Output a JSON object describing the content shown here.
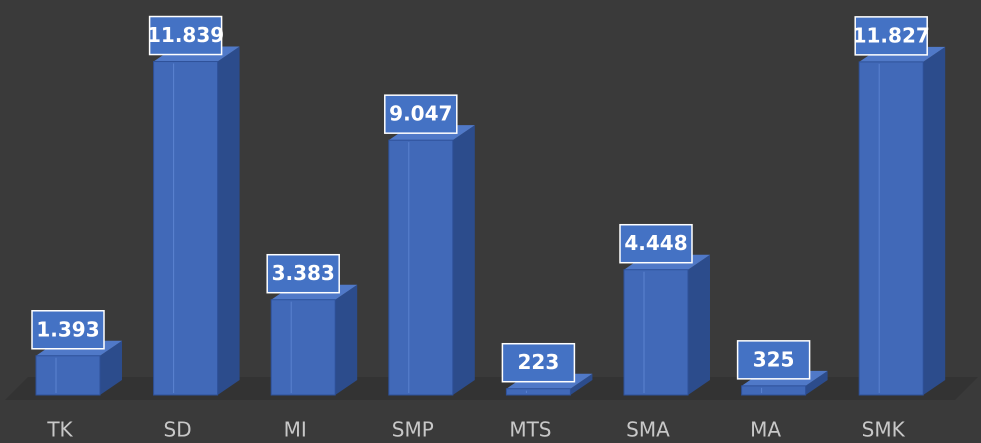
{
  "chart_data": {
    "type": "bar3d",
    "categories": [
      "TK",
      "SD",
      "MI",
      "SMP",
      "MTS",
      "SMA",
      "MA",
      "SMK"
    ],
    "values": [
      1393,
      11839,
      3383,
      9047,
      223,
      4448,
      325,
      11827
    ],
    "value_labels": [
      "1.393",
      "11.839",
      "3.383",
      "9.047",
      "223",
      "4.448",
      "325",
      "11.827"
    ],
    "color": "#4169b8",
    "ylim": [
      0,
      12000
    ]
  }
}
